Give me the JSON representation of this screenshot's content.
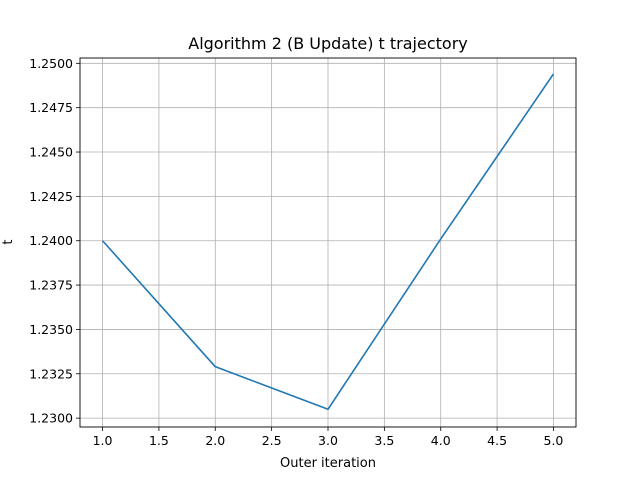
{
  "chart_data": {
    "type": "line",
    "title": "Algorithm 2 (B Update) t trajectory",
    "xlabel": "Outer iteration",
    "ylabel": "t",
    "x": [
      1,
      2,
      3,
      4,
      5
    ],
    "series": [
      {
        "values": [
          1.24,
          1.2329,
          1.2305,
          1.2401,
          1.2494
        ],
        "color": "#1f77b4"
      }
    ],
    "xlim": [
      0.8,
      5.2
    ],
    "ylim": [
      1.2295,
      1.2503
    ],
    "xticks": [
      "1.0",
      "1.5",
      "2.0",
      "2.5",
      "3.0",
      "3.5",
      "4.0",
      "4.5",
      "5.0"
    ],
    "yticks": [
      "1.2300",
      "1.2325",
      "1.2350",
      "1.2375",
      "1.2400",
      "1.2425",
      "1.2450",
      "1.2475",
      "1.2500"
    ],
    "grid": true,
    "legend": "none",
    "grid_color": "#b0b0b0"
  }
}
